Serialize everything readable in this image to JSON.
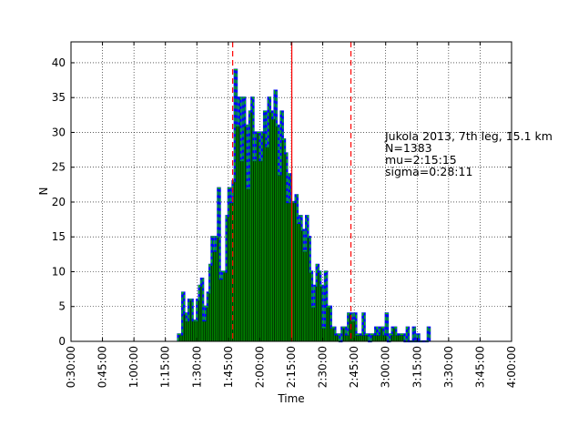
{
  "chart_data": {
    "type": "bar",
    "title": "",
    "xlabel": "Time",
    "ylabel": "N",
    "xlim_minutes": [
      30,
      240
    ],
    "ylim": [
      0,
      43
    ],
    "grid": true,
    "x_ticks": [
      "0:30:00",
      "0:45:00",
      "1:00:00",
      "1:15:00",
      "1:30:00",
      "1:45:00",
      "2:00:00",
      "2:15:00",
      "2:30:00",
      "2:45:00",
      "3:00:00",
      "3:15:00",
      "3:30:00",
      "3:45:00",
      "4:00:00"
    ],
    "y_ticks": [
      0,
      5,
      10,
      15,
      20,
      25,
      30,
      35,
      40
    ],
    "bin_start_minutes": 81,
    "bin_width_minutes": 1,
    "values": [
      1,
      1,
      7,
      4,
      3,
      6,
      6,
      3,
      3,
      6,
      8,
      9,
      3,
      5,
      7,
      11,
      15,
      13,
      15,
      22,
      9,
      10,
      10,
      18,
      22,
      20,
      23,
      39,
      31,
      35,
      26,
      35,
      31,
      22,
      33,
      35,
      26,
      30,
      30,
      26,
      30,
      33,
      28,
      35,
      33,
      32,
      36,
      31,
      24,
      33,
      29,
      27,
      20,
      24,
      20,
      20,
      21,
      17,
      18,
      16,
      13,
      18,
      15,
      10,
      5,
      8,
      11,
      10,
      8,
      2,
      10,
      5,
      5,
      2,
      2,
      1,
      1,
      0,
      2,
      2,
      1,
      4,
      4,
      3,
      4,
      1,
      1,
      1,
      4,
      1,
      1,
      0,
      1,
      1,
      2,
      1,
      2,
      2,
      1,
      4,
      0,
      1,
      2,
      2,
      1,
      1,
      1,
      1,
      0,
      2,
      0,
      0,
      2,
      0,
      1,
      0,
      0,
      0,
      0,
      2
    ],
    "vlines": [
      {
        "label": "mu-minus-sigma",
        "x_minutes": 107.07,
        "style": "dashed"
      },
      {
        "label": "mu",
        "x_minutes": 135.25,
        "style": "solid"
      },
      {
        "label": "mu-plus-sigma",
        "x_minutes": 163.43,
        "style": "dashed"
      }
    ],
    "annotations": [
      "Jukola 2013, 7th leg, 15.1 km",
      "N=1383",
      "mu=2:15:15",
      "sigma=0:28:11"
    ],
    "colors": {
      "bar_fill": "#008000",
      "bar_edge": "#000000",
      "outline_blue": "#0000ff",
      "outline_green": "#00c000",
      "vline": "#ff0000"
    }
  }
}
